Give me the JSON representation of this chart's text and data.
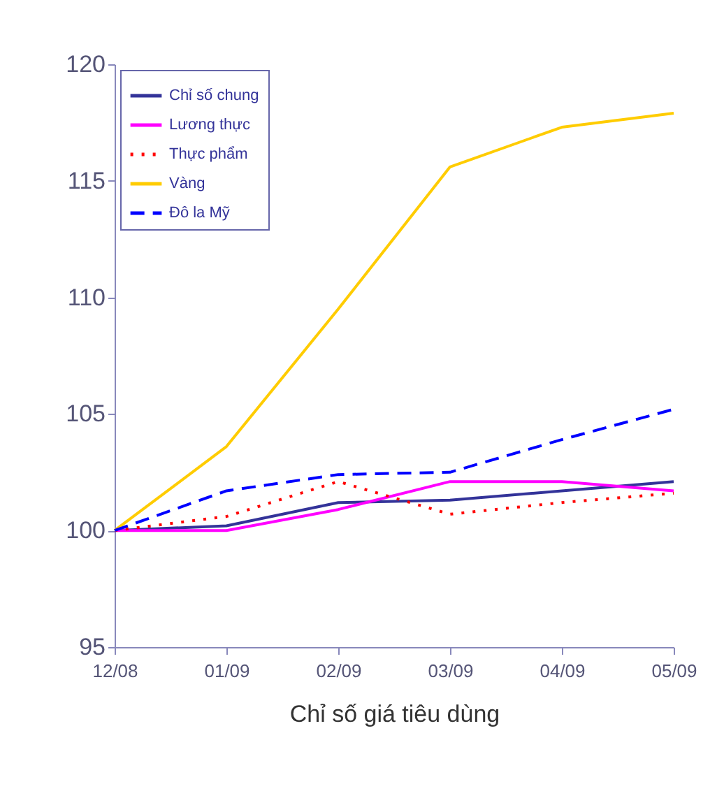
{
  "chart_data": {
    "type": "line",
    "xlabel": "Chỉ số giá tiêu dùng",
    "categories": [
      "12/08",
      "01/09",
      "02/09",
      "03/09",
      "04/09",
      "05/09"
    ],
    "ylim": [
      95,
      120
    ],
    "yticks": [
      95,
      100,
      105,
      110,
      115,
      120
    ],
    "grid": false,
    "legend": "top left",
    "marker": "none",
    "series": [
      {
        "name": "Chỉ số chung",
        "color": "#333399",
        "line_style": "solid",
        "values": [
          100,
          100.2,
          101.2,
          101.3,
          101.7,
          102.1
        ]
      },
      {
        "name": "Lương thực",
        "color": "#ff00ff",
        "line_style": "solid",
        "values": [
          100,
          100.0,
          100.9,
          102.1,
          102.1,
          101.7
        ]
      },
      {
        "name": "Thực phẩm",
        "color": "#ff0000",
        "line_style": "dotted",
        "values": [
          100,
          100.6,
          102.1,
          100.7,
          101.2,
          101.6
        ]
      },
      {
        "name": "Vàng",
        "color": "#ffcc00",
        "line_style": "solid",
        "values": [
          100,
          103.6,
          109.5,
          115.6,
          117.3,
          117.9
        ]
      },
      {
        "name": "Đô la Mỹ",
        "color": "#0000ff",
        "line_style": "dashed",
        "values": [
          100,
          101.7,
          102.4,
          102.5,
          103.9,
          105.2
        ]
      }
    ]
  }
}
